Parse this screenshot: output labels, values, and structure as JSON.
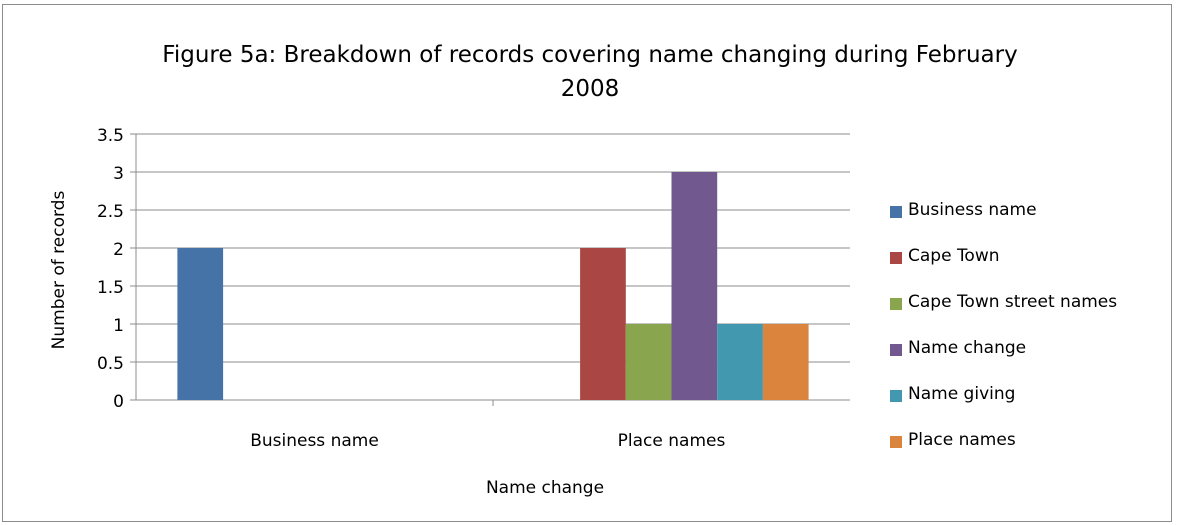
{
  "chart_data": {
    "type": "bar",
    "title_lines": [
      "Figure 5a: Breakdown of records covering name changing during February",
      "2008"
    ],
    "xlabel": "Name change",
    "ylabel": "Number of records",
    "categories": [
      "Business name",
      "Place names"
    ],
    "ylim": [
      0,
      3.5
    ],
    "yticks": [
      "0",
      "0.5",
      "1",
      "1.5",
      "2",
      "2.5",
      "3",
      "3.5"
    ],
    "ytick_values": [
      0,
      0.5,
      1,
      1.5,
      2,
      2.5,
      3,
      3.5
    ],
    "grid": true,
    "legend_position": "right",
    "series": [
      {
        "name": "Business name",
        "color": "#4572a7",
        "values": [
          2,
          0
        ]
      },
      {
        "name": "Cape Town",
        "color": "#aa4643",
        "values": [
          0,
          2
        ]
      },
      {
        "name": "Cape Town street names",
        "color": "#89a54e",
        "values": [
          0,
          1
        ]
      },
      {
        "name": "Name change",
        "color": "#71588f",
        "values": [
          0,
          3
        ]
      },
      {
        "name": "Name giving",
        "color": "#4198af",
        "values": [
          0,
          1
        ]
      },
      {
        "name": "Place names",
        "color": "#db843d",
        "values": [
          0,
          1
        ]
      }
    ]
  }
}
